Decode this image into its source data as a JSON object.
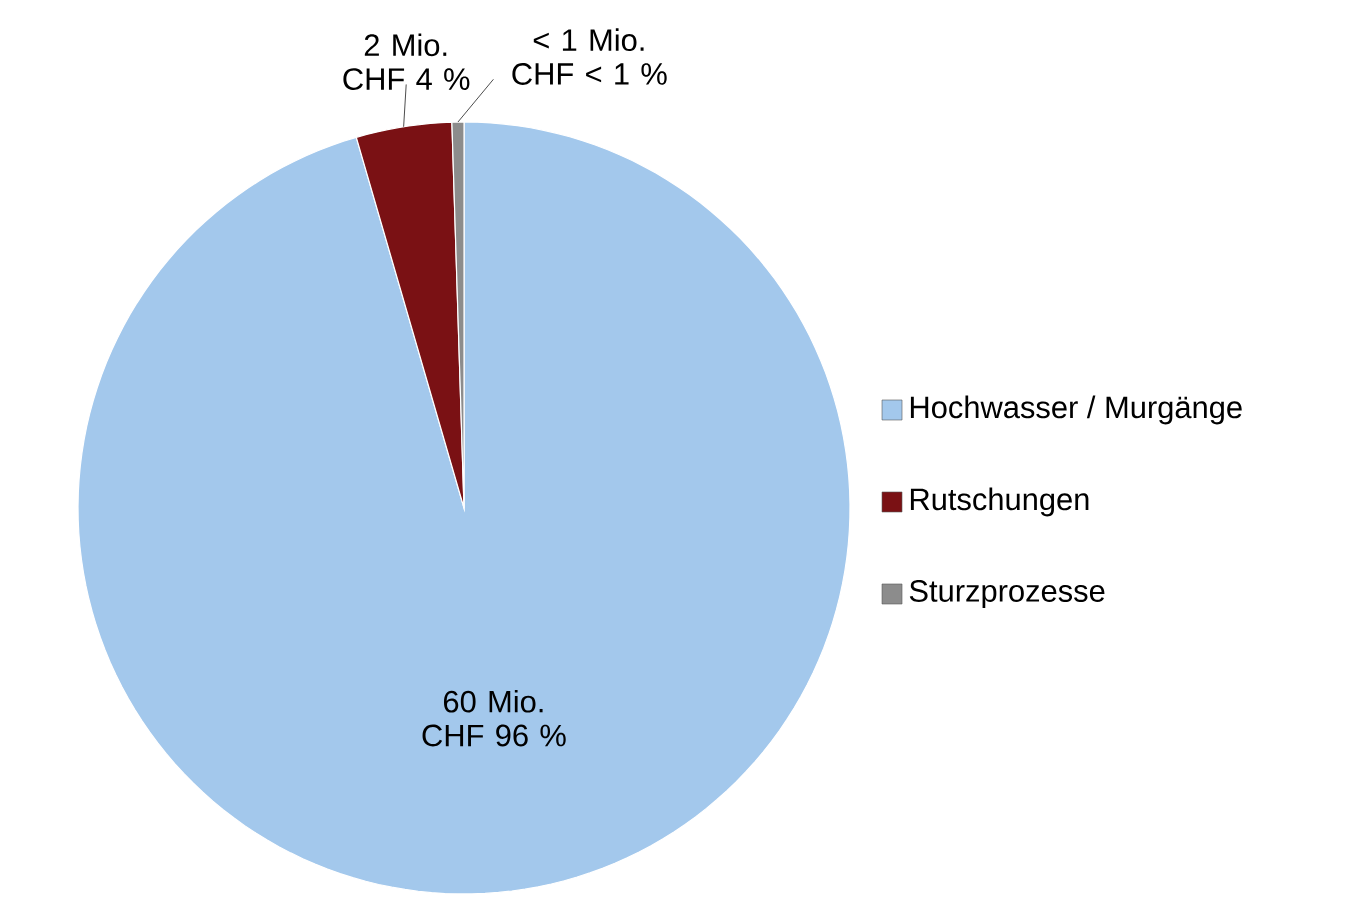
{
  "chart_data": {
    "type": "pie",
    "categories": [
      "Hochwasser / Murgänge",
      "Rutschungen",
      "Sturzprozesse"
    ],
    "values": [
      95.5,
      4,
      0.5
    ],
    "colors": [
      "#a3c8ec",
      "#7a1114",
      "#8c8c8c"
    ],
    "value_labels": [
      "60 Mio. CHF 96 %",
      "2 Mio. CHF 4 %",
      "< 1 Mio. CHF < 1 %"
    ],
    "legend": "right"
  }
}
